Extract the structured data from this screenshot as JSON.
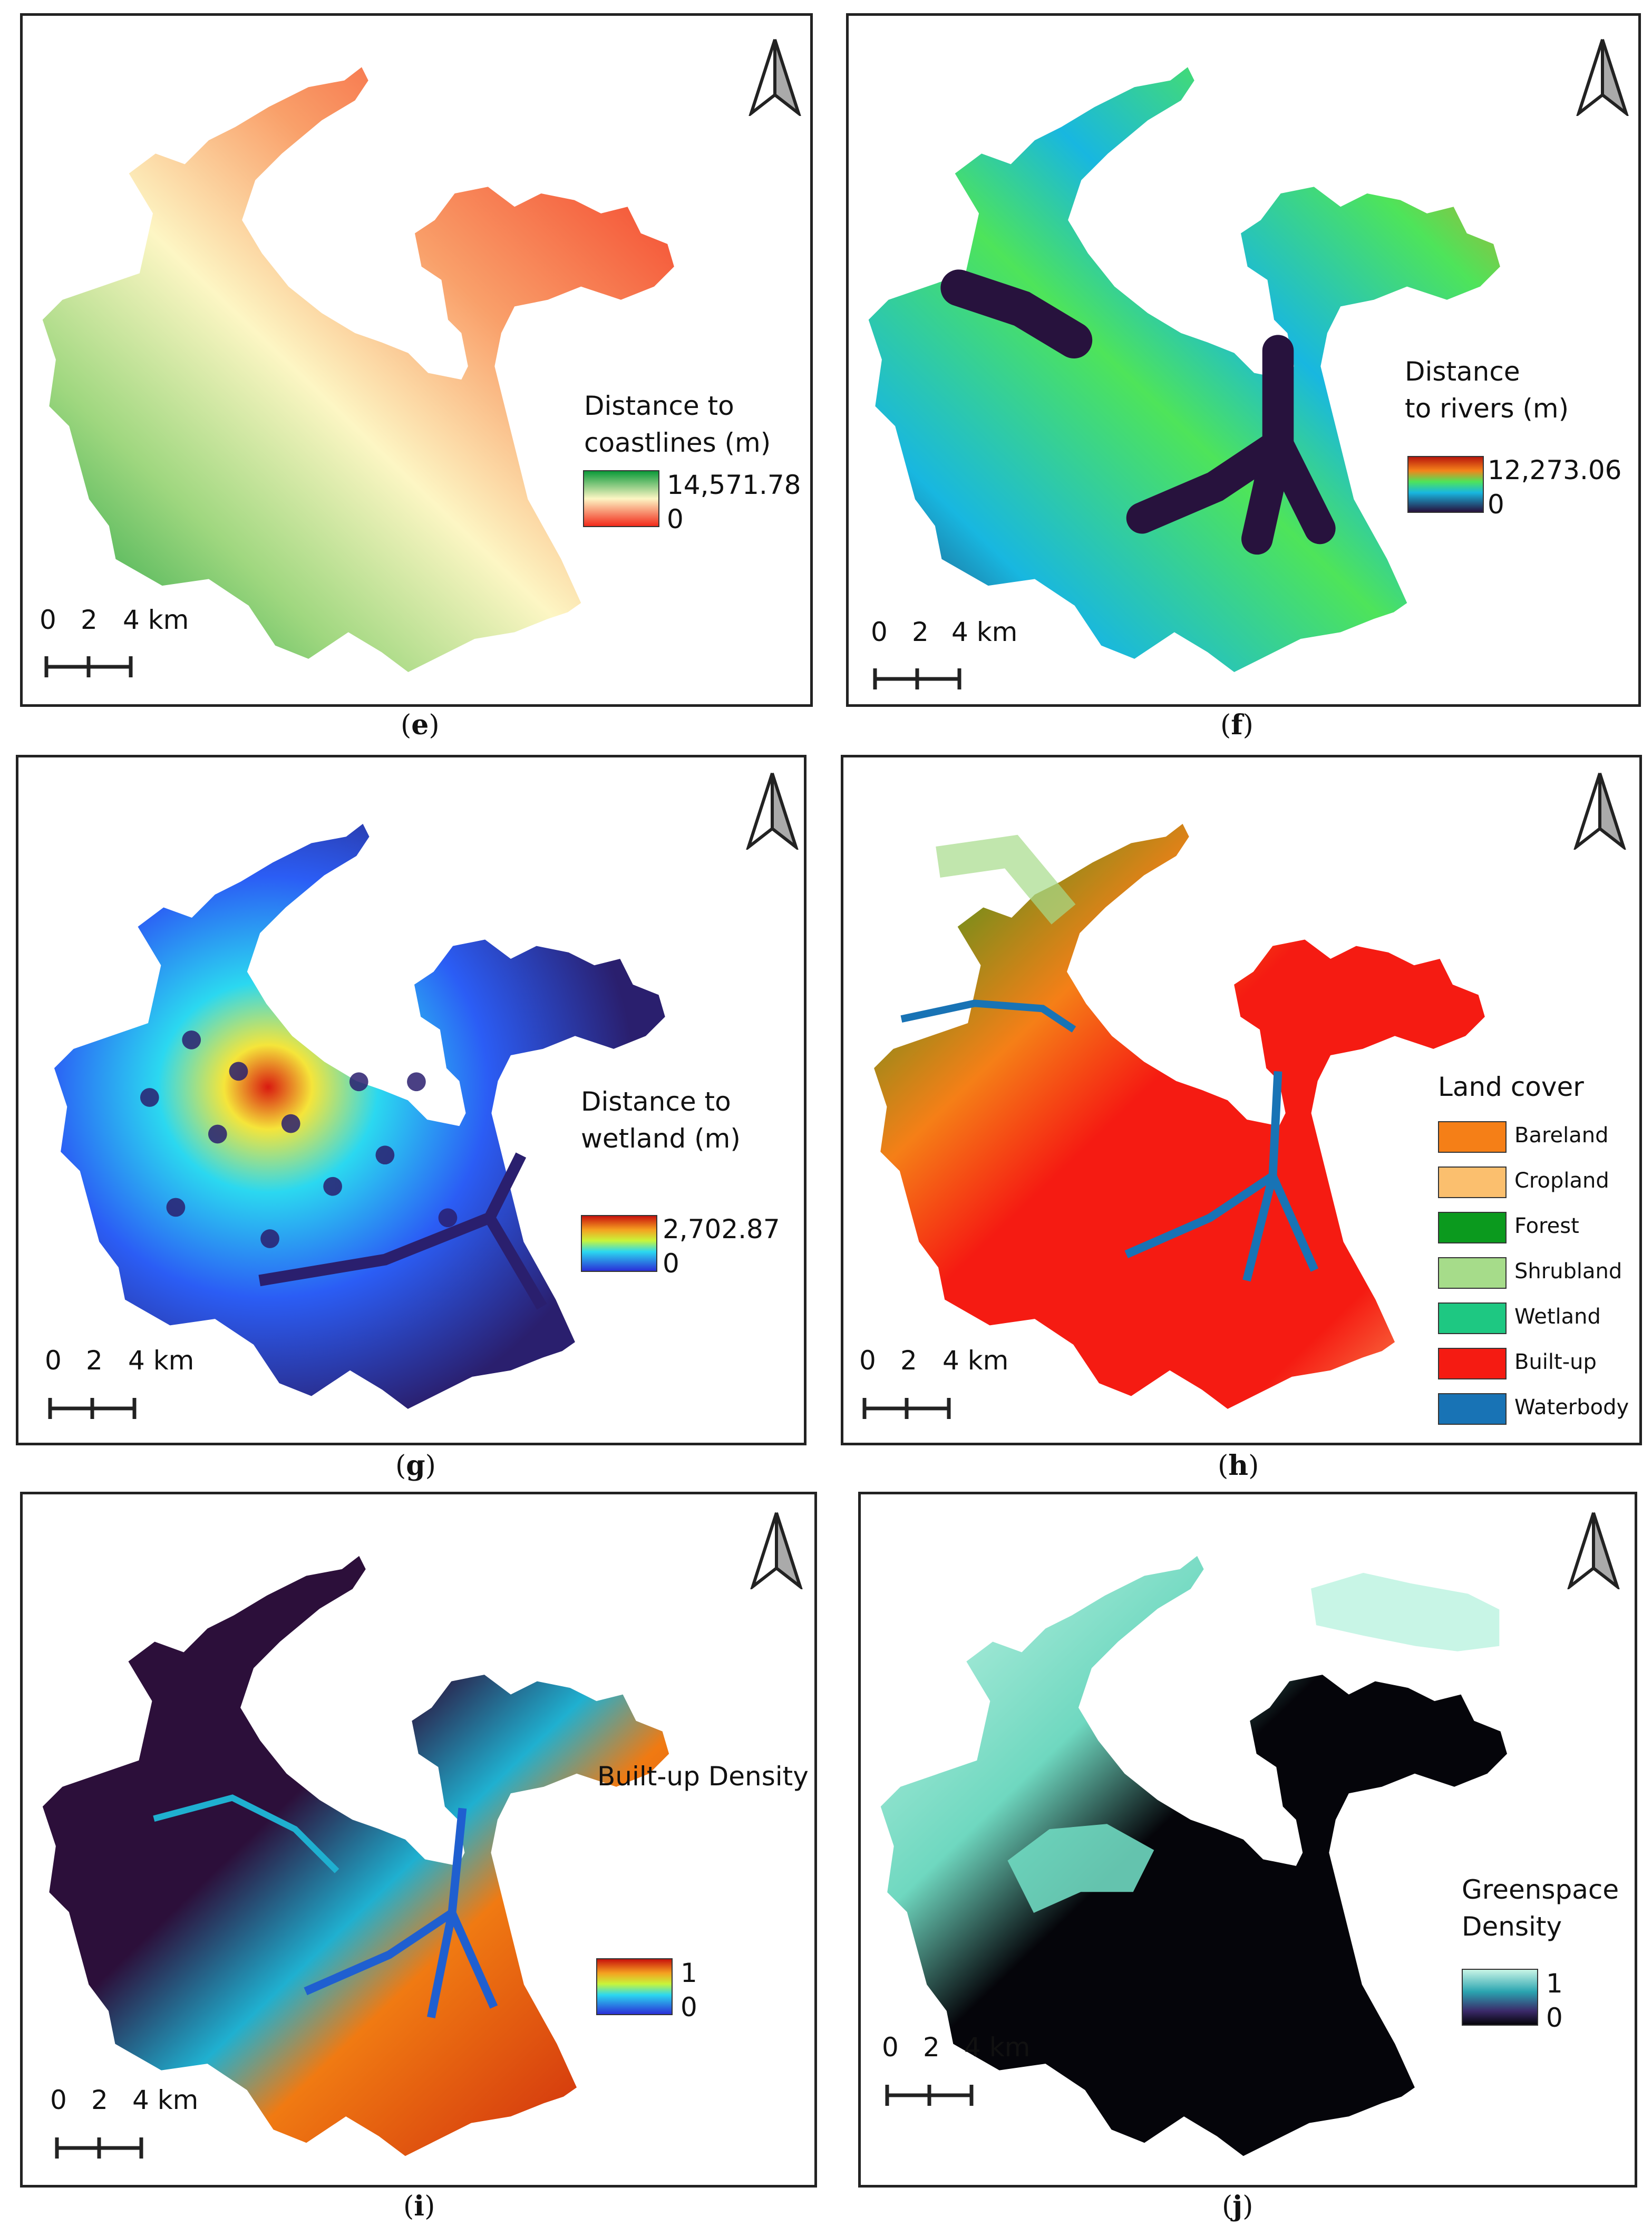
{
  "panels": [
    {
      "id": "e",
      "caption": "e",
      "legend_title": "Distance to\ncoastlines (m)",
      "max_label": "14,571.78",
      "min_label": "0"
    },
    {
      "id": "f",
      "caption": "f",
      "legend_title": "Distance\nto rivers (m)",
      "max_label": "12,273.06",
      "min_label": "0"
    },
    {
      "id": "g",
      "caption": "g",
      "legend_title": "Distance to\nwetland (m)",
      "max_label": "2,702.87",
      "min_label": "0"
    },
    {
      "id": "h",
      "caption": "h",
      "legend_title": "Land cover",
      "classes": [
        {
          "label": "Bareland",
          "color": "#f57f17"
        },
        {
          "label": "Cropland",
          "color": "#fbbf6e"
        },
        {
          "label": "Forest",
          "color": "#0b9a1e"
        },
        {
          "label": "Shrubland",
          "color": "#a6dc8a"
        },
        {
          "label": "Wetland",
          "color": "#1ec882"
        },
        {
          "label": "Built-up",
          "color": "#f51b12"
        },
        {
          "label": "Waterbody",
          "color": "#1873b5"
        }
      ]
    },
    {
      "id": "i",
      "caption": "i",
      "legend_title": "Built-up Density",
      "max_label": "1",
      "min_label": "0"
    },
    {
      "id": "j",
      "caption": "j",
      "legend_title": "Greenspace\nDensity",
      "max_label": "1",
      "min_label": "0"
    }
  ],
  "scale": {
    "tick_0": "0",
    "tick_2": "2",
    "tick_4": "4 km"
  },
  "colors": {
    "coast_green": "#0c9a3a",
    "coast_cream": "#fdf6c4",
    "coast_red": "#f22a1a",
    "rivers_navy": "#27123d",
    "rivers_cyan": "#18b7e0",
    "rivers_green": "#4ee45a",
    "rivers_orange": "#f5831a",
    "wet_navy": "#2a1f6e",
    "wet_blue": "#2b5df5",
    "wet_cyan": "#2bd8f0",
    "wet_yellow": "#f5e53a",
    "wet_red": "#d91a10",
    "dens_navy": "#2c0f3a",
    "dens_red": "#c81c0c",
    "green_black": "#05050a",
    "green_light": "#c8f5e6"
  }
}
